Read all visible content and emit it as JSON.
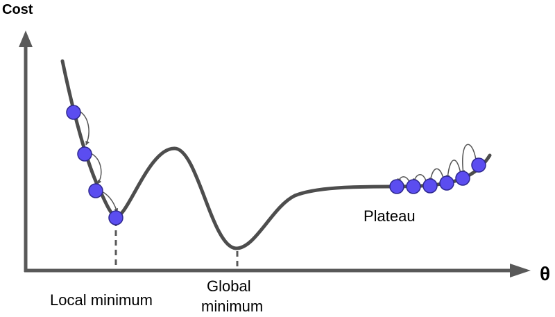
{
  "axes": {
    "y_label": "Cost",
    "x_label": "θ"
  },
  "labels": {
    "local_minimum": "Local minimum",
    "global_minimum_line1": "Global",
    "global_minimum_line2": "minimum",
    "plateau": "Plateau"
  },
  "colors": {
    "curve": "#4d4d4d",
    "axis": "#595959",
    "ball_fill": "#5b4df0",
    "ball_stroke": "#2e2890",
    "arrow": "#555555",
    "text": "#000000"
  },
  "balls": {
    "left_descent_count": 4,
    "plateau_count": 6
  }
}
